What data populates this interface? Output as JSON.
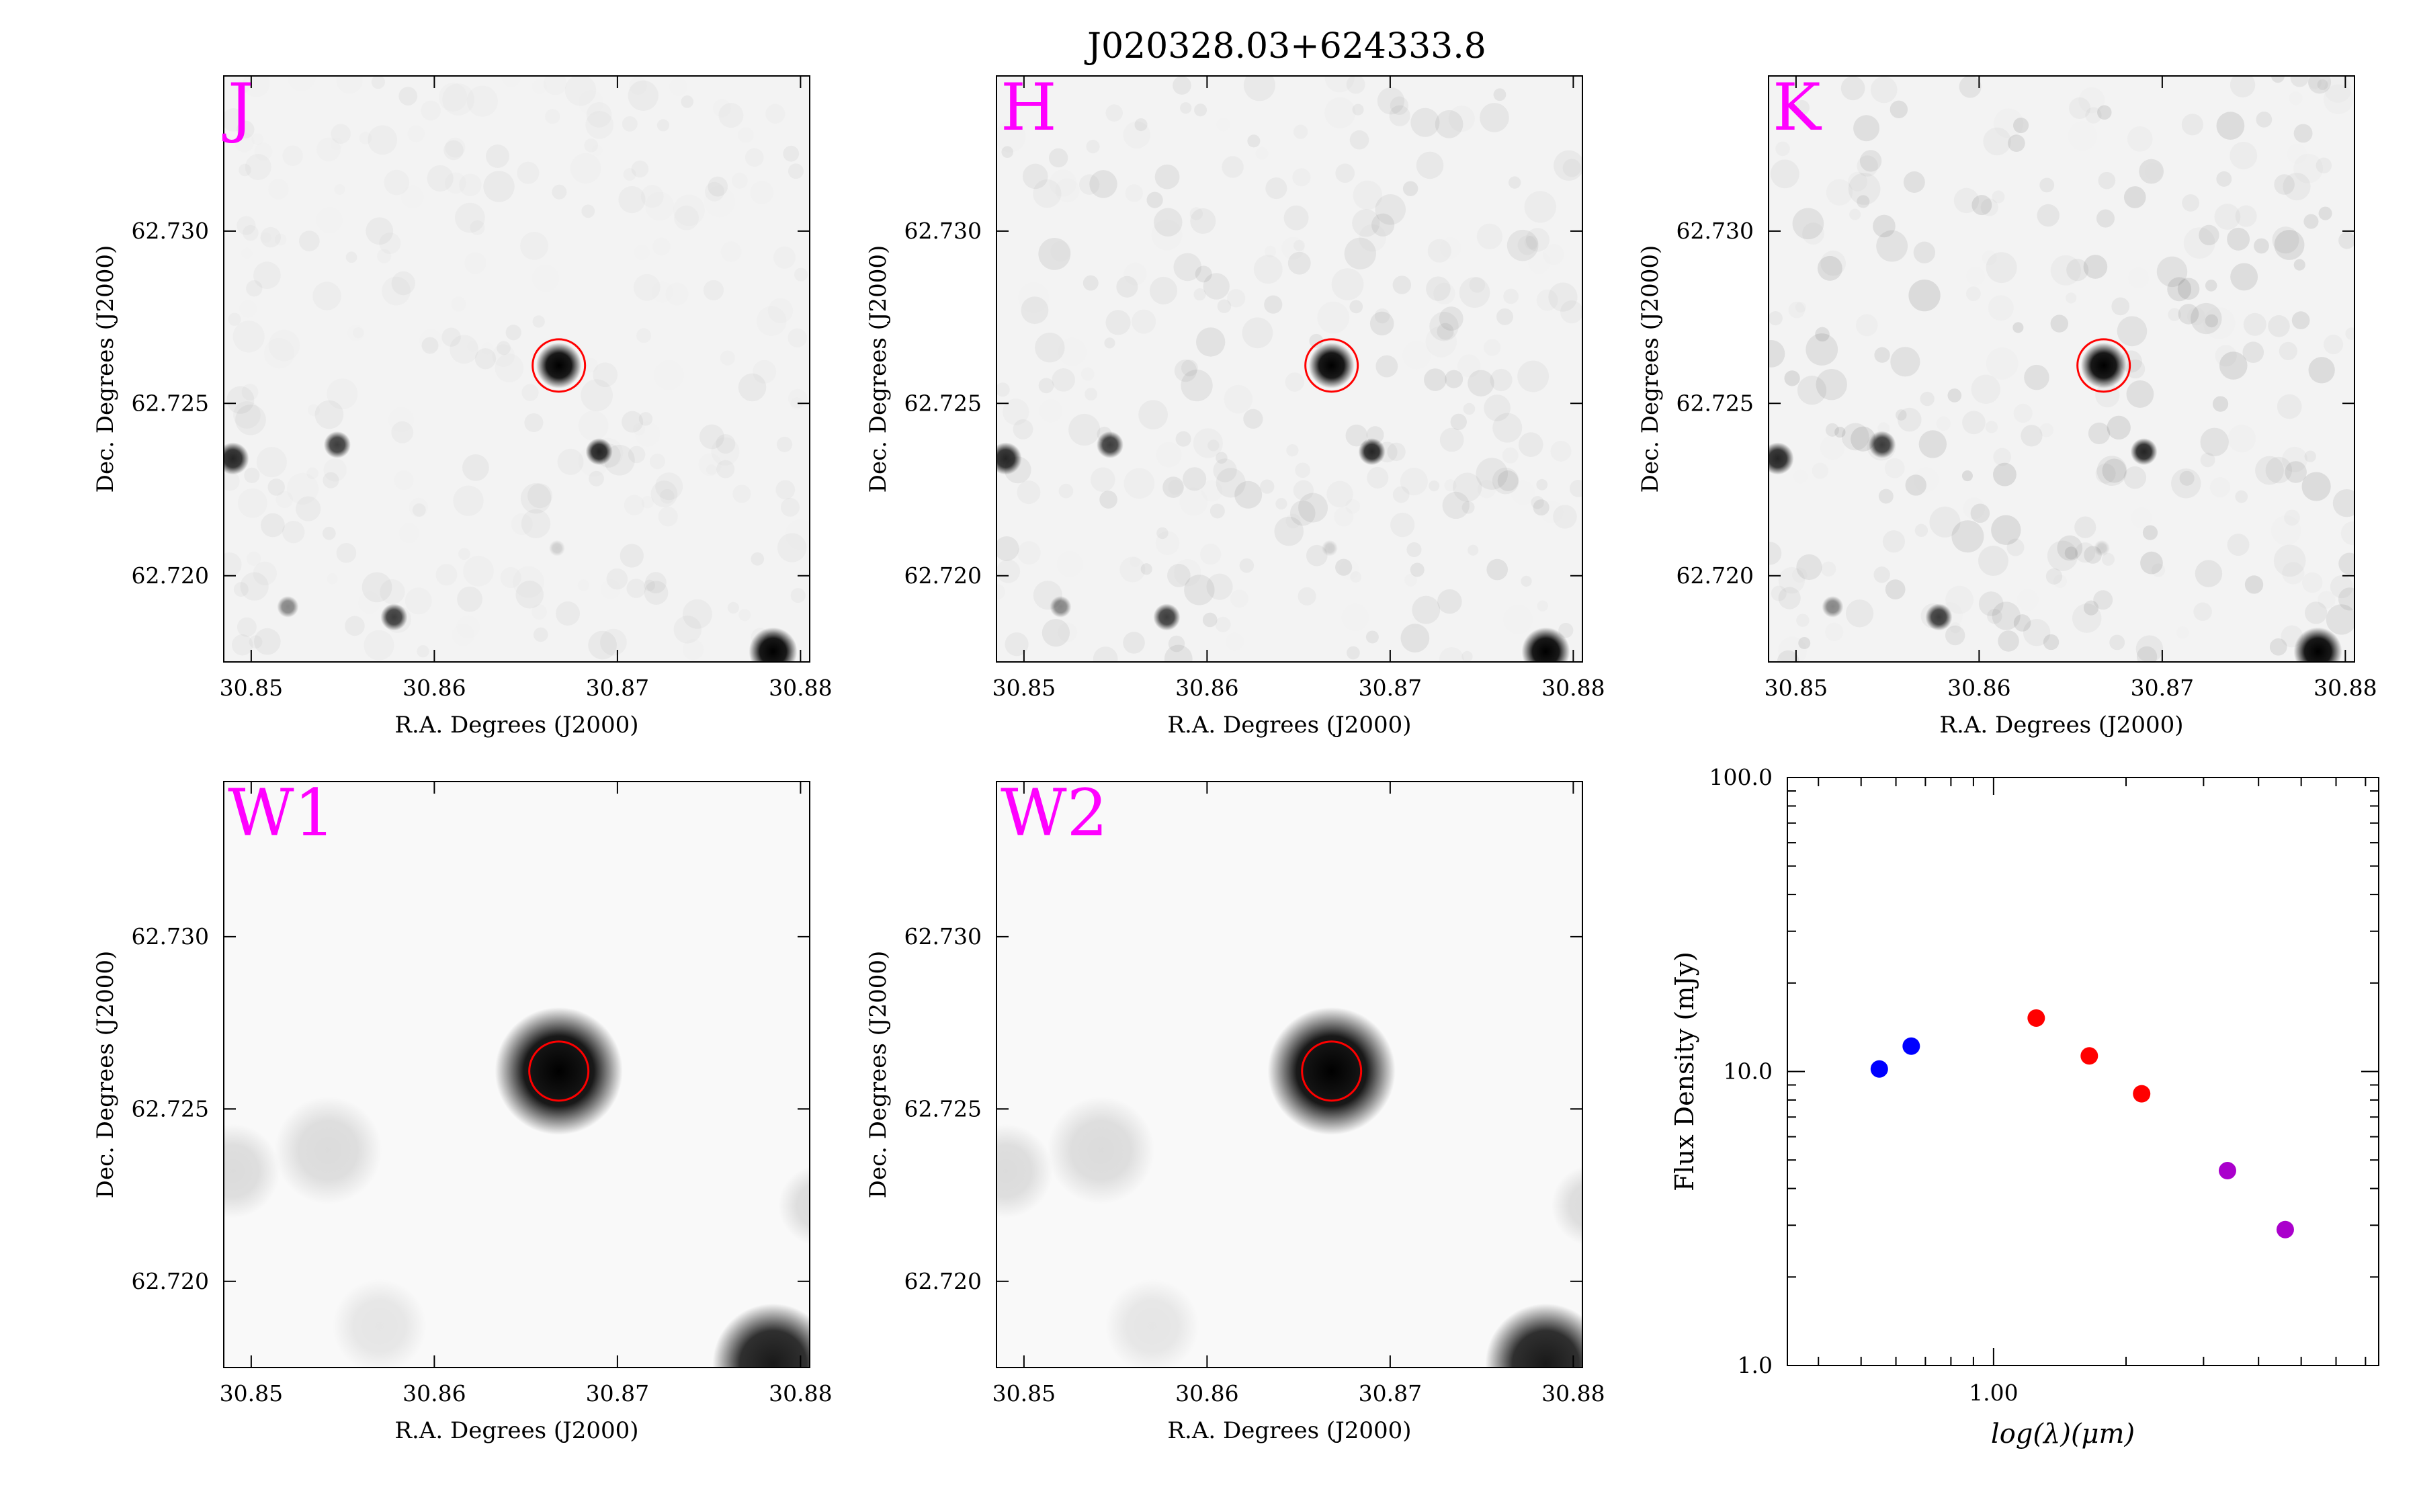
{
  "title": "J020328.03+624333.8",
  "image_axes": {
    "xlabel": "R.A. Degrees (J2000)",
    "ylabel": "Dec. Degrees (J2000)",
    "x_ticks": [
      "30.85",
      "30.86",
      "30.87",
      "30.88"
    ],
    "x_tick_values": [
      30.85,
      30.86,
      30.87,
      30.88
    ],
    "y_ticks": [
      "62.730",
      "62.725",
      "62.720"
    ],
    "y_tick_values": [
      62.73,
      62.725,
      62.72
    ],
    "xlim": [
      30.8485,
      30.8805
    ],
    "ylim": [
      62.7175,
      62.7345
    ]
  },
  "panels": [
    {
      "band": "J",
      "label_color": "#ff00ff"
    },
    {
      "band": "H",
      "label_color": "#ff00ff"
    },
    {
      "band": "K",
      "label_color": "#ff00ff"
    },
    {
      "band": "W1",
      "label_color": "#ff00ff"
    },
    {
      "band": "W2",
      "label_color": "#ff00ff"
    }
  ],
  "target_marker": {
    "ra": 30.8668,
    "dec": 62.7261,
    "color": "#ff0000"
  },
  "chart_data": {
    "type": "scatter",
    "xlabel": "log(λ)(μm)",
    "ylabel": "Flux Density (mJy)",
    "y_scale": "log",
    "x_scale": "log",
    "xlim": [
      0.34,
      7.5
    ],
    "ylim": [
      1.0,
      100.0
    ],
    "x_tick_labels": [
      "1.00"
    ],
    "y_tick_labels": [
      "1.0",
      "10.0",
      "100.0"
    ],
    "series": [
      {
        "color": "#0000ff",
        "points": [
          {
            "x": 0.55,
            "y": 10.2
          },
          {
            "x": 0.65,
            "y": 12.2
          }
        ]
      },
      {
        "color": "#ff0000",
        "points": [
          {
            "x": 1.25,
            "y": 15.2
          },
          {
            "x": 1.65,
            "y": 11.3
          },
          {
            "x": 2.17,
            "y": 8.4
          }
        ]
      },
      {
        "color": "#aa00cc",
        "points": [
          {
            "x": 3.4,
            "y": 4.6
          },
          {
            "x": 4.6,
            "y": 2.9
          }
        ]
      }
    ]
  }
}
